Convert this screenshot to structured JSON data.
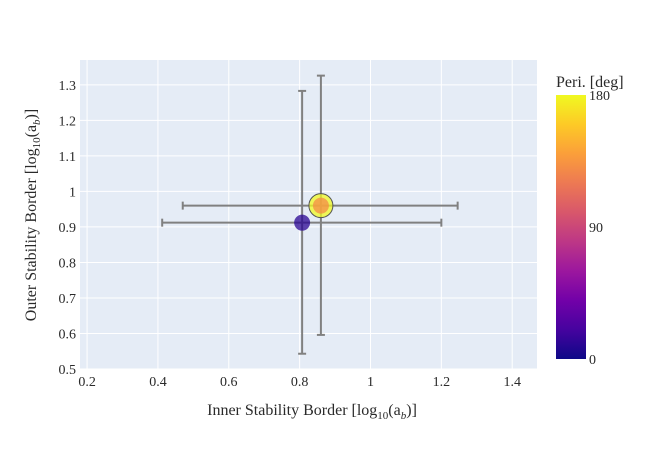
{
  "chart_data": {
    "type": "scatter",
    "xlabel": "Inner Stability Border [log",
    "xlabel_sub": "10",
    "xlabel_tail": "(a",
    "xlabel_tail_sub": "b",
    "xlabel_end": ")]",
    "ylabel": "Outer Stability Border [log",
    "ylabel_sub": "10",
    "ylabel_tail": "(a",
    "ylabel_tail_sub": "b",
    "ylabel_end": ")]",
    "xlim": [
      0.18,
      1.47
    ],
    "ylim": [
      0.5,
      1.37
    ],
    "xticks": [
      {
        "v": 0.2,
        "label": "0.2"
      },
      {
        "v": 0.4,
        "label": "0.4"
      },
      {
        "v": 0.6,
        "label": "0.6"
      },
      {
        "v": 0.8,
        "label": "0.8"
      },
      {
        "v": 1.0,
        "label": "1"
      },
      {
        "v": 1.2,
        "label": "1.2"
      },
      {
        "v": 1.4,
        "label": "1.4"
      }
    ],
    "yticks": [
      {
        "v": 0.5,
        "label": "0.5"
      },
      {
        "v": 0.6,
        "label": "0.6"
      },
      {
        "v": 0.7,
        "label": "0.7"
      },
      {
        "v": 0.8,
        "label": "0.8"
      },
      {
        "v": 0.9,
        "label": "0.9"
      },
      {
        "v": 1.0,
        "label": "1"
      },
      {
        "v": 1.1,
        "label": "1.1"
      },
      {
        "v": 1.2,
        "label": "1.2"
      },
      {
        "v": 1.3,
        "label": "1.3"
      }
    ],
    "points": [
      {
        "x": 0.807,
        "y": 0.912,
        "x_err_low": 0.412,
        "x_err_high": 1.2,
        "y_err_low": 0.543,
        "y_err_high": 1.283,
        "peri": 10,
        "highlight": false
      },
      {
        "x": 0.86,
        "y": 0.96,
        "x_err_low": 0.47,
        "x_err_high": 1.246,
        "y_err_low": 0.596,
        "y_err_high": 1.326,
        "peri": 130,
        "highlight": true
      }
    ],
    "colorbar": {
      "title": "Peri. [deg]",
      "min": 0,
      "max": 180,
      "ticks": [
        {
          "v": 0,
          "label": "0"
        },
        {
          "v": 90,
          "label": "90"
        },
        {
          "v": 180,
          "label": "180"
        }
      ],
      "colorscale": [
        "#0d0887",
        "#46039f",
        "#7201a8",
        "#9c179e",
        "#bd3786",
        "#d8576b",
        "#ed7953",
        "#fb9f3a",
        "#fdca26",
        "#f0f921"
      ]
    },
    "grid": true,
    "legend": "none"
  },
  "colors": {
    "plot_bg": "#e5ecf6",
    "grid": "#ffffff",
    "error_bar": "#808080",
    "highlight_ring": "#f0f921"
  }
}
